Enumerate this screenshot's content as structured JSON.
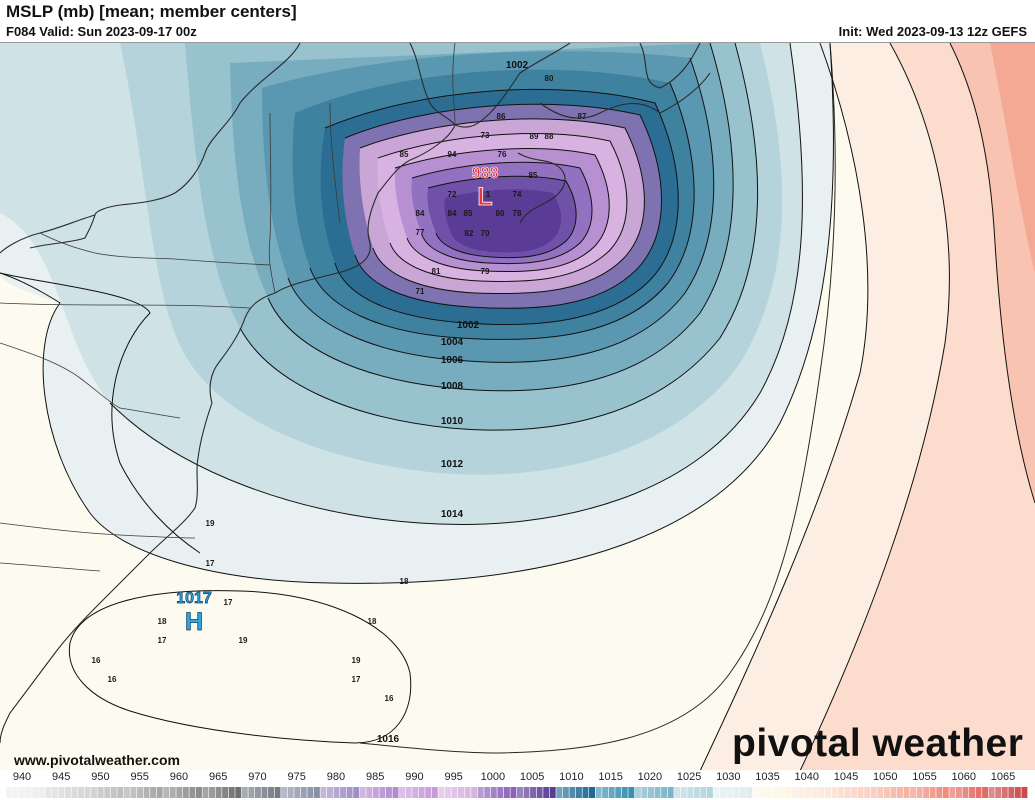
{
  "header": {
    "title": "MSLP (mb) [mean; member centers]",
    "valid": "F084 Valid: Sun 2023-09-17 00z",
    "init": "Init: Wed 2023-09-13 12z GEFS"
  },
  "map": {
    "low_center": {
      "value": "988",
      "symbol": "L",
      "color": "#e8363b"
    },
    "high_center": {
      "value": "1017",
      "symbol": "H",
      "color": "#2fa8e0"
    },
    "isobar_labels": [
      "1002",
      "1002",
      "1004",
      "1006",
      "1008",
      "1010",
      "1012",
      "1014",
      "1016"
    ],
    "member_values": [
      "80",
      "87",
      "86",
      "73",
      "89",
      "88",
      "85",
      "94",
      "76",
      "72",
      "1",
      "74",
      "85",
      "84",
      "84",
      "85",
      "80",
      "78",
      "77",
      "82",
      "70",
      "81",
      "79",
      "71",
      "19",
      "17",
      "18",
      "17",
      "18",
      "17",
      "19",
      "18",
      "16",
      "16",
      "19",
      "17",
      "16"
    ]
  },
  "footer": {
    "site": "www.pivotalweather.com",
    "logo": "pivotal weather"
  },
  "colorbar": {
    "ticks": [
      "940",
      "945",
      "950",
      "955",
      "960",
      "965",
      "970",
      "975",
      "980",
      "985",
      "990",
      "995",
      "1000",
      "1005",
      "1010",
      "1015",
      "1020",
      "1025",
      "1030",
      "1035",
      "1040",
      "1045",
      "1050",
      "1055",
      "1060",
      "1065"
    ],
    "colors": [
      "#eeeeee",
      "#d8d8d8",
      "#bfbfbf",
      "#a6a6a6",
      "#8c8c8c",
      "#6f6f6f",
      "#777a86",
      "#8a8fa8",
      "#a08ec4",
      "#b48bd0",
      "#c79ad8",
      "#d8b3e2",
      "#8a62b8",
      "#5a3b96",
      "#1f6a95",
      "#3b8fb0",
      "#79b4c8",
      "#b5d5de",
      "#e0ecee",
      "#fbf7e4",
      "#fde7dc",
      "#fcd2c2",
      "#f6b3a0",
      "#ee8f7d",
      "#e36a5f",
      "#c94a4a"
    ]
  }
}
